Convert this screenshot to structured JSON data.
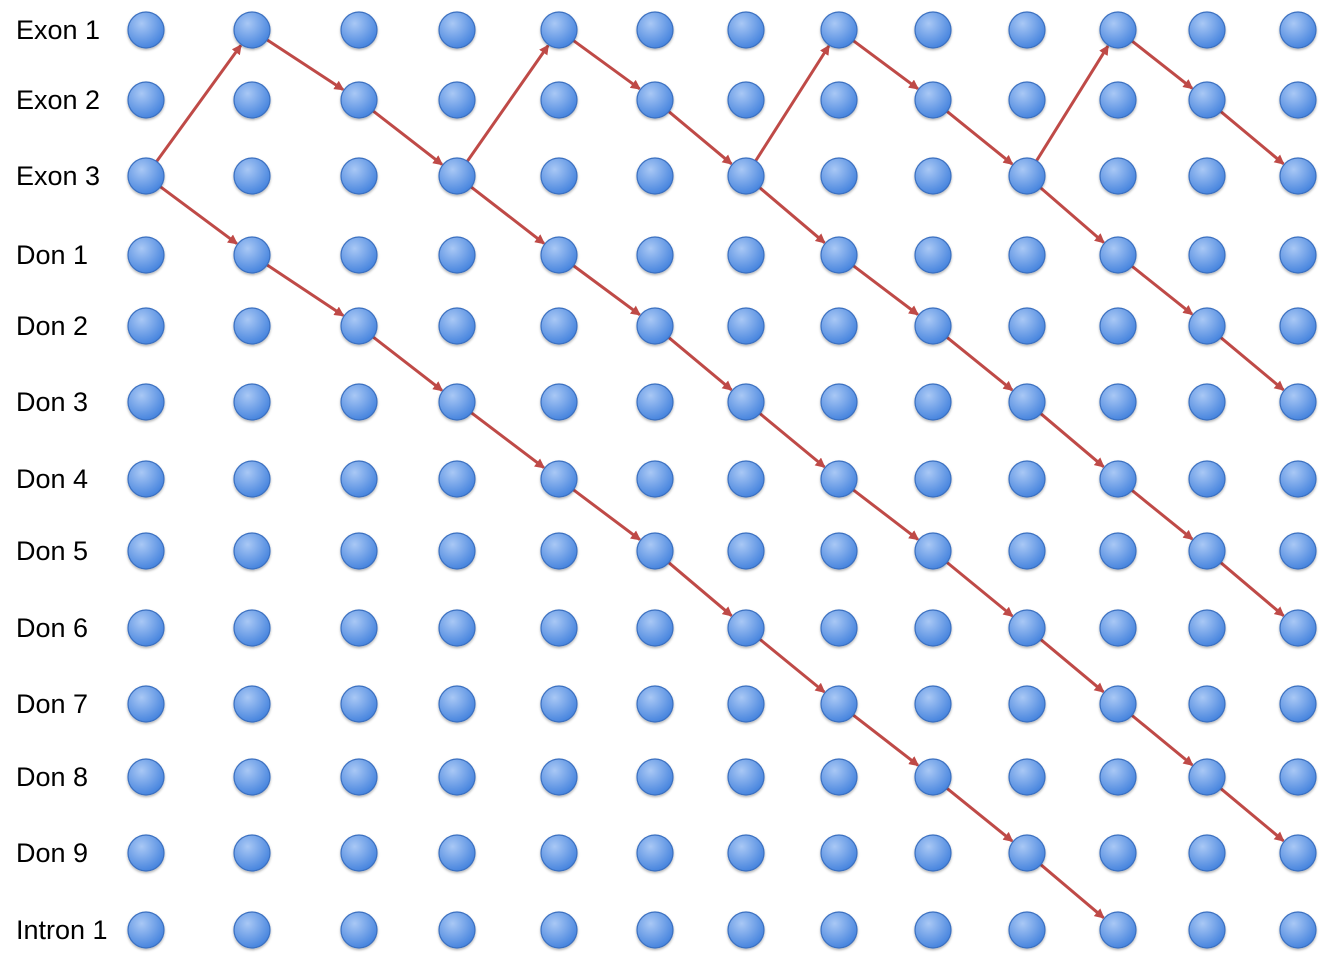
{
  "rows": [
    "Exon 1",
    "Exon 2",
    "Exon 3",
    "Don 1",
    "Don 2",
    "Don 3",
    "Don 4",
    "Don 5",
    "Don 6",
    "Don 7",
    "Don 8",
    "Don 9",
    "Intron 1"
  ],
  "column_count": 13,
  "transitions": [
    {
      "from": [
        2,
        0
      ],
      "to": [
        0,
        1
      ]
    },
    {
      "from": [
        0,
        1
      ],
      "to": [
        1,
        2
      ]
    },
    {
      "from": [
        1,
        2
      ],
      "to": [
        2,
        3
      ]
    },
    {
      "from": [
        2,
        3
      ],
      "to": [
        0,
        4
      ]
    },
    {
      "from": [
        0,
        4
      ],
      "to": [
        1,
        5
      ]
    },
    {
      "from": [
        1,
        5
      ],
      "to": [
        2,
        6
      ]
    },
    {
      "from": [
        2,
        6
      ],
      "to": [
        0,
        7
      ]
    },
    {
      "from": [
        0,
        7
      ],
      "to": [
        1,
        8
      ]
    },
    {
      "from": [
        1,
        8
      ],
      "to": [
        2,
        9
      ]
    },
    {
      "from": [
        2,
        9
      ],
      "to": [
        0,
        10
      ]
    },
    {
      "from": [
        0,
        10
      ],
      "to": [
        1,
        11
      ]
    },
    {
      "from": [
        1,
        11
      ],
      "to": [
        2,
        12
      ]
    },
    {
      "from": [
        2,
        0
      ],
      "to": [
        3,
        1
      ]
    },
    {
      "from": [
        3,
        1
      ],
      "to": [
        4,
        2
      ]
    },
    {
      "from": [
        4,
        2
      ],
      "to": [
        5,
        3
      ]
    },
    {
      "from": [
        5,
        3
      ],
      "to": [
        6,
        4
      ]
    },
    {
      "from": [
        6,
        4
      ],
      "to": [
        7,
        5
      ]
    },
    {
      "from": [
        7,
        5
      ],
      "to": [
        8,
        6
      ]
    },
    {
      "from": [
        8,
        6
      ],
      "to": [
        9,
        7
      ]
    },
    {
      "from": [
        9,
        7
      ],
      "to": [
        10,
        8
      ]
    },
    {
      "from": [
        10,
        8
      ],
      "to": [
        11,
        9
      ]
    },
    {
      "from": [
        11,
        9
      ],
      "to": [
        12,
        10
      ]
    },
    {
      "from": [
        2,
        3
      ],
      "to": [
        3,
        4
      ]
    },
    {
      "from": [
        3,
        4
      ],
      "to": [
        4,
        5
      ]
    },
    {
      "from": [
        4,
        5
      ],
      "to": [
        5,
        6
      ]
    },
    {
      "from": [
        5,
        6
      ],
      "to": [
        6,
        7
      ]
    },
    {
      "from": [
        6,
        7
      ],
      "to": [
        7,
        8
      ]
    },
    {
      "from": [
        7,
        8
      ],
      "to": [
        8,
        9
      ]
    },
    {
      "from": [
        8,
        9
      ],
      "to": [
        9,
        10
      ]
    },
    {
      "from": [
        9,
        10
      ],
      "to": [
        10,
        11
      ]
    },
    {
      "from": [
        10,
        11
      ],
      "to": [
        11,
        12
      ]
    },
    {
      "from": [
        2,
        6
      ],
      "to": [
        3,
        7
      ]
    },
    {
      "from": [
        3,
        7
      ],
      "to": [
        4,
        8
      ]
    },
    {
      "from": [
        4,
        8
      ],
      "to": [
        5,
        9
      ]
    },
    {
      "from": [
        5,
        9
      ],
      "to": [
        6,
        10
      ]
    },
    {
      "from": [
        6,
        10
      ],
      "to": [
        7,
        11
      ]
    },
    {
      "from": [
        7,
        11
      ],
      "to": [
        8,
        12
      ]
    },
    {
      "from": [
        2,
        9
      ],
      "to": [
        3,
        10
      ]
    },
    {
      "from": [
        3,
        10
      ],
      "to": [
        4,
        11
      ]
    },
    {
      "from": [
        4,
        11
      ],
      "to": [
        5,
        12
      ]
    }
  ],
  "colors": {
    "node_fill_light": "#a9c8f5",
    "node_fill_dark": "#3f7fdc",
    "node_stroke": "#3a6fc0",
    "arrow": "#bf4a47",
    "label": "#000000"
  }
}
